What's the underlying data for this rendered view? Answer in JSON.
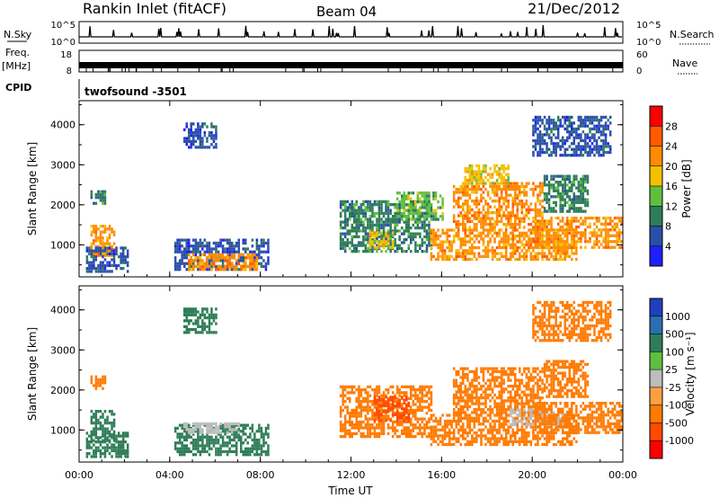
{
  "header": {
    "station": "Rankin Inlet (fitACF)",
    "beam": "Beam 04",
    "date": "21/Dec/2012"
  },
  "panels": {
    "nsky_label": "N.Sky",
    "nsky_ticks": [
      "10^5",
      "10^0"
    ],
    "nsearch_label": "N.Search",
    "nsearch_ticks": [
      "10^5",
      "10^0"
    ],
    "freq_label": "Freq.",
    "freq_unit": "[MHz]",
    "freq_ticks": [
      "18",
      "8"
    ],
    "nave_label": "Nave",
    "nave_ticks": [
      "60",
      "0"
    ],
    "cpid_label": "CPID",
    "cpid_value": "twofsound -3501"
  },
  "axes": {
    "xlabel": "Time UT",
    "xticks": [
      "00:00",
      "04:00",
      "08:00",
      "12:00",
      "16:00",
      "20:00",
      "00:00"
    ],
    "ylabel": "Slant Range [km]",
    "yticks": [
      "1000",
      "2000",
      "3000",
      "4000"
    ]
  },
  "colors": {
    "power": [
      "#1f1fff",
      "#2a4fa8",
      "#2e7d57",
      "#5fbf3f",
      "#f2c200",
      "#ff8c00",
      "#ff5a00",
      "#ff0000"
    ],
    "velocity": [
      "#1f3fbf",
      "#2a6fb0",
      "#2e7d57",
      "#5fbf3f",
      "#bdbdbd",
      "#ffa040",
      "#ff7a00",
      "#ff4a00",
      "#ff0000"
    ]
  },
  "chart_data": [
    {
      "type": "heatmap",
      "title": "",
      "xlabel": "Time UT",
      "ylabel": "Slant Range [km]",
      "xlim": [
        0,
        24
      ],
      "ylim": [
        200,
        4600
      ],
      "colorbar_label": "Power [dB]",
      "colorbar_ticks": [
        "4",
        "8",
        "12",
        "16",
        "20",
        "24",
        "28"
      ],
      "colorbar_range": [
        0,
        32
      ],
      "regions": [
        {
          "t0": 0.5,
          "t1": 1.6,
          "r0": 700,
          "r1": 1500,
          "value": 26
        },
        {
          "t0": 0.3,
          "t1": 2.2,
          "r0": 300,
          "r1": 900,
          "value": 10
        },
        {
          "t0": 0.5,
          "t1": 1.2,
          "r0": 2000,
          "r1": 2300,
          "value": 12
        },
        {
          "t0": 4.2,
          "t1": 8.3,
          "r0": 350,
          "r1": 1150,
          "value": 8
        },
        {
          "t0": 4.8,
          "t1": 7.8,
          "r0": 350,
          "r1": 750,
          "value": 26
        },
        {
          "t0": 4.6,
          "t1": 6.0,
          "r0": 3400,
          "r1": 4000,
          "value": 10
        },
        {
          "t0": 11.5,
          "t1": 15.5,
          "r0": 800,
          "r1": 2100,
          "value": 12
        },
        {
          "t0": 12.8,
          "t1": 13.8,
          "r0": 900,
          "r1": 1300,
          "value": 22
        },
        {
          "t0": 14.0,
          "t1": 16.0,
          "r0": 1600,
          "r1": 2300,
          "value": 16
        },
        {
          "t0": 15.5,
          "t1": 22.0,
          "r0": 600,
          "r1": 1400,
          "value": 27
        },
        {
          "t0": 16.5,
          "t1": 20.5,
          "r0": 1400,
          "r1": 2500,
          "value": 24
        },
        {
          "t0": 17.0,
          "t1": 19.0,
          "r0": 2500,
          "r1": 3000,
          "value": 20
        },
        {
          "t0": 20.0,
          "t1": 24.0,
          "r0": 900,
          "r1": 1700,
          "value": 24
        },
        {
          "t0": 20.5,
          "t1": 22.5,
          "r0": 1800,
          "r1": 2700,
          "value": 12
        },
        {
          "t0": 20.0,
          "t1": 23.5,
          "r0": 3200,
          "r1": 4200,
          "value": 8
        }
      ]
    },
    {
      "type": "heatmap",
      "title": "",
      "xlabel": "Time UT",
      "ylabel": "Slant Range [km]",
      "xlim": [
        0,
        24
      ],
      "ylim": [
        200,
        4600
      ],
      "colorbar_label": "Velocity [m s⁻¹]",
      "colorbar_ticks": [
        "1000",
        "500",
        "100",
        "25",
        "-25",
        "-100",
        "-500",
        "-1000"
      ],
      "colorbar_range": [
        1000,
        -1000
      ],
      "regions": [
        {
          "t0": 0.5,
          "t1": 1.6,
          "r0": 700,
          "r1": 1500,
          "value": 100
        },
        {
          "t0": 0.3,
          "t1": 2.2,
          "r0": 300,
          "r1": 900,
          "value": 300
        },
        {
          "t0": 0.5,
          "t1": 1.2,
          "r0": 2000,
          "r1": 2300,
          "value": -200
        },
        {
          "t0": 4.2,
          "t1": 8.3,
          "r0": 350,
          "r1": 1150,
          "value": 200
        },
        {
          "t0": 4.6,
          "t1": 7.0,
          "r0": 900,
          "r1": 1150,
          "value": 0
        },
        {
          "t0": 4.6,
          "t1": 6.0,
          "r0": 3400,
          "r1": 4000,
          "value": 300
        },
        {
          "t0": 11.5,
          "t1": 15.5,
          "r0": 800,
          "r1": 2100,
          "value": -200
        },
        {
          "t0": 13.0,
          "t1": 14.5,
          "r0": 1200,
          "r1": 1800,
          "value": -600
        },
        {
          "t0": 15.5,
          "t1": 22.0,
          "r0": 600,
          "r1": 1400,
          "value": -300
        },
        {
          "t0": 16.5,
          "t1": 20.5,
          "r0": 1400,
          "r1": 2500,
          "value": -200
        },
        {
          "t0": 19.0,
          "t1": 21.5,
          "r0": 1100,
          "r1": 1500,
          "value": 0
        },
        {
          "t0": 20.0,
          "t1": 24.0,
          "r0": 900,
          "r1": 1700,
          "value": -300
        },
        {
          "t0": 20.5,
          "t1": 22.5,
          "r0": 1800,
          "r1": 2700,
          "value": -200
        },
        {
          "t0": 20.0,
          "t1": 23.5,
          "r0": 3200,
          "r1": 4200,
          "value": -200
        }
      ]
    }
  ]
}
